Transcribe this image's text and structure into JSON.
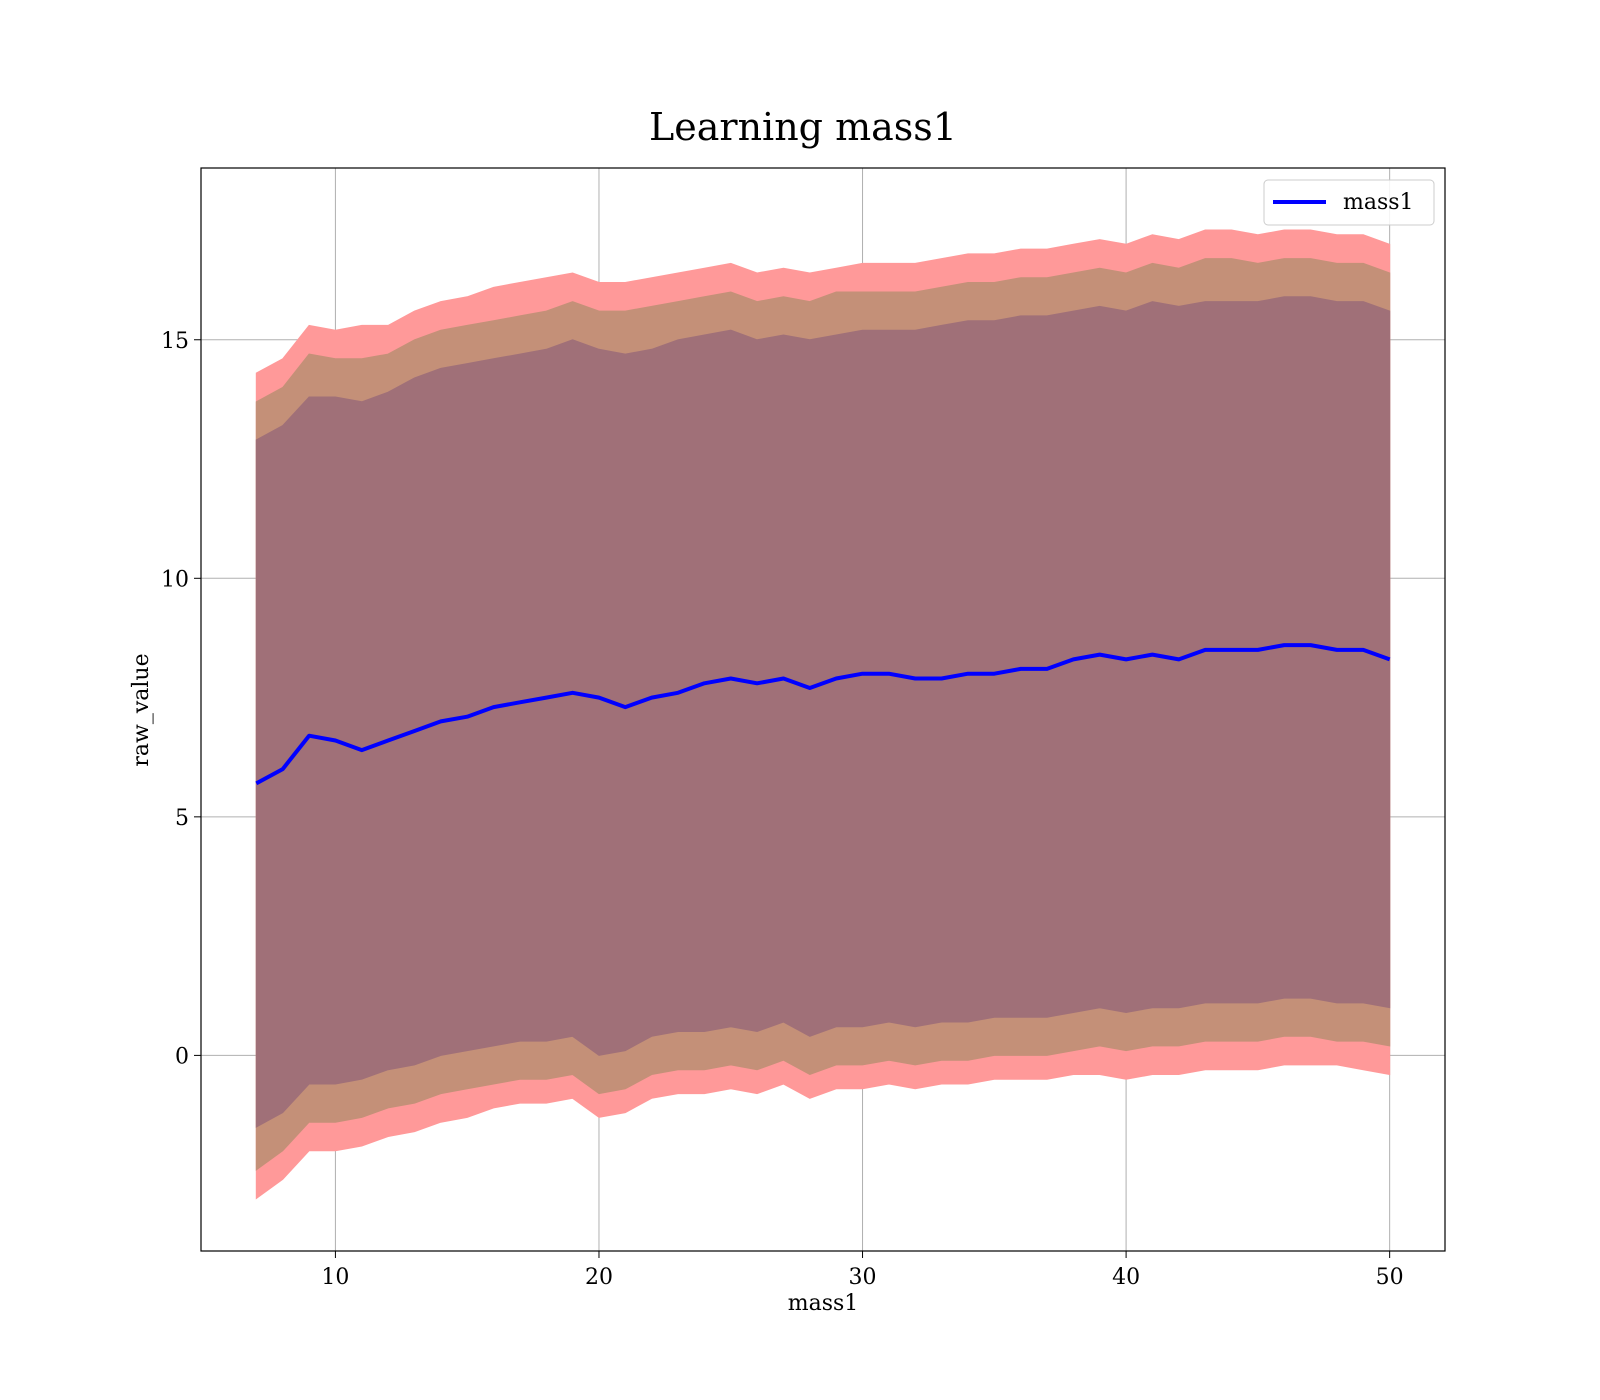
{
  "chart_data": {
    "type": "line",
    "title": "Learning mass1",
    "xlabel": "mass1",
    "ylabel": "raw_value",
    "xlim": [
      4.9,
      52.1
    ],
    "ylim": [
      -4.1,
      18.6
    ],
    "x_ticks": [
      10,
      20,
      30,
      40,
      50
    ],
    "y_ticks": [
      0,
      5,
      10,
      15
    ],
    "grid": true,
    "legend": {
      "position": "top-right",
      "entries": [
        "mass1"
      ]
    },
    "colors": {
      "line": "#0000ff",
      "band_outer": "#ff9999",
      "band_mid": "#c49078",
      "band_inner": "#a07078"
    },
    "x": [
      7,
      8,
      9,
      10,
      11,
      12,
      13,
      14,
      15,
      16,
      17,
      18,
      19,
      20,
      21,
      22,
      23,
      24,
      25,
      26,
      27,
      28,
      29,
      30,
      31,
      32,
      33,
      34,
      35,
      36,
      37,
      38,
      39,
      40,
      41,
      42,
      43,
      44,
      45,
      46,
      47,
      48,
      49,
      50
    ],
    "series": [
      {
        "name": "mass1",
        "values": [
          5.7,
          6.0,
          6.7,
          6.6,
          6.4,
          6.6,
          6.8,
          7.0,
          7.1,
          7.3,
          7.4,
          7.5,
          7.6,
          7.5,
          7.3,
          7.5,
          7.6,
          7.8,
          7.9,
          7.8,
          7.9,
          7.7,
          7.9,
          8.0,
          8.0,
          7.9,
          7.9,
          8.0,
          8.0,
          8.1,
          8.1,
          8.3,
          8.4,
          8.3,
          8.4,
          8.3,
          8.5,
          8.5,
          8.5,
          8.6,
          8.6,
          8.5,
          8.5,
          8.3
        ]
      }
    ],
    "bands": [
      {
        "lower": [
          -3.0,
          -2.6,
          -2.0,
          -2.0,
          -1.9,
          -1.7,
          -1.6,
          -1.4,
          -1.3,
          -1.1,
          -1.0,
          -1.0,
          -0.9,
          -1.3,
          -1.2,
          -0.9,
          -0.8,
          -0.8,
          -0.7,
          -0.8,
          -0.6,
          -0.9,
          -0.7,
          -0.7,
          -0.6,
          -0.7,
          -0.6,
          -0.6,
          -0.5,
          -0.5,
          -0.5,
          -0.4,
          -0.4,
          -0.5,
          -0.4,
          -0.4,
          -0.3,
          -0.3,
          -0.3,
          -0.2,
          -0.2,
          -0.2,
          -0.3,
          -0.4
        ],
        "upper": [
          14.3,
          14.6,
          15.3,
          15.2,
          15.3,
          15.3,
          15.6,
          15.8,
          15.9,
          16.1,
          16.2,
          16.3,
          16.4,
          16.2,
          16.2,
          16.3,
          16.4,
          16.5,
          16.6,
          16.4,
          16.5,
          16.4,
          16.5,
          16.6,
          16.6,
          16.6,
          16.7,
          16.8,
          16.8,
          16.9,
          16.9,
          17.0,
          17.1,
          17.0,
          17.2,
          17.1,
          17.3,
          17.3,
          17.2,
          17.3,
          17.3,
          17.2,
          17.2,
          17.0
        ]
      },
      {
        "lower": [
          -2.4,
          -2.0,
          -1.4,
          -1.4,
          -1.3,
          -1.1,
          -1.0,
          -0.8,
          -0.7,
          -0.6,
          -0.5,
          -0.5,
          -0.4,
          -0.8,
          -0.7,
          -0.4,
          -0.3,
          -0.3,
          -0.2,
          -0.3,
          -0.1,
          -0.4,
          -0.2,
          -0.2,
          -0.1,
          -0.2,
          -0.1,
          -0.1,
          0.0,
          0.0,
          0.0,
          0.1,
          0.2,
          0.1,
          0.2,
          0.2,
          0.3,
          0.3,
          0.3,
          0.4,
          0.4,
          0.3,
          0.3,
          0.2
        ],
        "upper": [
          13.7,
          14.0,
          14.7,
          14.6,
          14.6,
          14.7,
          15.0,
          15.2,
          15.3,
          15.4,
          15.5,
          15.6,
          15.8,
          15.6,
          15.6,
          15.7,
          15.8,
          15.9,
          16.0,
          15.8,
          15.9,
          15.8,
          16.0,
          16.0,
          16.0,
          16.0,
          16.1,
          16.2,
          16.2,
          16.3,
          16.3,
          16.4,
          16.5,
          16.4,
          16.6,
          16.5,
          16.7,
          16.7,
          16.6,
          16.7,
          16.7,
          16.6,
          16.6,
          16.4
        ]
      },
      {
        "lower": [
          -1.5,
          -1.2,
          -0.6,
          -0.6,
          -0.5,
          -0.3,
          -0.2,
          0.0,
          0.1,
          0.2,
          0.3,
          0.3,
          0.4,
          0.0,
          0.1,
          0.4,
          0.5,
          0.5,
          0.6,
          0.5,
          0.7,
          0.4,
          0.6,
          0.6,
          0.7,
          0.6,
          0.7,
          0.7,
          0.8,
          0.8,
          0.8,
          0.9,
          1.0,
          0.9,
          1.0,
          1.0,
          1.1,
          1.1,
          1.1,
          1.2,
          1.2,
          1.1,
          1.1,
          1.0
        ],
        "upper": [
          12.9,
          13.2,
          13.8,
          13.8,
          13.7,
          13.9,
          14.2,
          14.4,
          14.5,
          14.6,
          14.7,
          14.8,
          15.0,
          14.8,
          14.7,
          14.8,
          15.0,
          15.1,
          15.2,
          15.0,
          15.1,
          15.0,
          15.1,
          15.2,
          15.2,
          15.2,
          15.3,
          15.4,
          15.4,
          15.5,
          15.5,
          15.6,
          15.7,
          15.6,
          15.8,
          15.7,
          15.8,
          15.8,
          15.8,
          15.9,
          15.9,
          15.8,
          15.8,
          15.6
        ]
      }
    ]
  }
}
